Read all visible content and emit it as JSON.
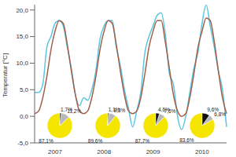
{
  "chart_data": [
    {
      "type": "line",
      "y_label": "Temperatur [°C]",
      "categories": [
        null,
        null,
        null,
        null,
        null,
        "2007",
        null,
        null,
        null,
        null,
        null,
        null,
        null,
        null,
        null,
        null,
        null,
        "2008",
        null,
        null,
        null,
        null,
        null,
        null,
        null,
        null,
        null,
        null,
        null,
        "2009",
        null,
        null,
        null,
        null,
        null,
        null,
        null,
        null,
        null,
        null,
        null,
        "2010",
        null,
        null,
        null,
        null,
        null,
        null
      ],
      "series": [
        {
          "color": "#5cc6e0",
          "values": [
            4.5,
            4.5,
            6,
            13,
            15,
            17.5,
            18,
            17,
            13,
            9,
            4,
            2,
            3.5,
            3,
            5,
            8.5,
            14.5,
            17,
            18,
            18,
            13,
            9.5,
            5,
            1.5,
            -2,
            1,
            4.5,
            12,
            15,
            17,
            19,
            19.5,
            15.5,
            8,
            6,
            0,
            -2.5,
            0,
            4.5,
            9,
            12,
            17.5,
            21,
            17,
            13,
            8.5,
            5,
            -2
          ]
        },
        {
          "color": "#a0604a",
          "values": [
            0.5,
            1,
            3.5,
            7.5,
            12.5,
            16,
            18,
            17.5,
            13.5,
            8.5,
            4,
            1,
            0.5,
            1,
            3.5,
            7.5,
            12.5,
            16,
            18,
            17.5,
            13.5,
            8.5,
            4,
            1,
            0.5,
            1,
            3.5,
            8,
            13,
            16,
            18,
            18,
            14,
            9,
            4,
            1,
            0,
            0.5,
            3.5,
            8,
            13,
            16,
            18.5,
            18,
            14,
            8.5,
            3.5,
            0.5
          ]
        }
      ],
      "ylim": [
        -5,
        21
      ],
      "yticks": [
        {
          "value": -5,
          "label": "-5,0"
        },
        {
          "value": 0,
          "label": "0,0"
        },
        {
          "value": 5,
          "label": "5,0"
        },
        {
          "value": 10,
          "label": "10,0"
        },
        {
          "value": 15,
          "label": "15,0"
        },
        {
          "value": 20,
          "label": "20,0"
        }
      ],
      "grid": false
    },
    {
      "type": "pie",
      "title": "2007",
      "values": [
        87.1,
        11.2,
        1.7
      ],
      "value_labels": [
        "87,1%",
        "11,2%",
        "1,7%"
      ],
      "colors": [
        "#f5e600",
        "#b8b8b8",
        "#111111"
      ],
      "data_labels": true
    },
    {
      "type": "pie",
      "title": "2008",
      "values": [
        89.6,
        9.3,
        1.1
      ],
      "value_labels": [
        "89,6%",
        "9,3%",
        "1,1%"
      ],
      "colors": [
        "#f5e600",
        "#b8b8b8",
        "#111111"
      ],
      "data_labels": true
    },
    {
      "type": "pie",
      "title": "2009",
      "values": [
        87.7,
        7.6,
        4.6
      ],
      "value_labels": [
        "87,7%",
        "7,6%",
        "4,6%"
      ],
      "colors": [
        "#f5e600",
        "#b8b8b8",
        "#111111"
      ],
      "data_labels": true
    },
    {
      "type": "pie",
      "title": "2010",
      "values": [
        83.6,
        6.8,
        9.6
      ],
      "value_labels": [
        "83,6%",
        "6,8%",
        "9,6%"
      ],
      "colors": [
        "#f5e600",
        "#b8b8b8",
        "#111111"
      ],
      "data_labels": true
    }
  ]
}
